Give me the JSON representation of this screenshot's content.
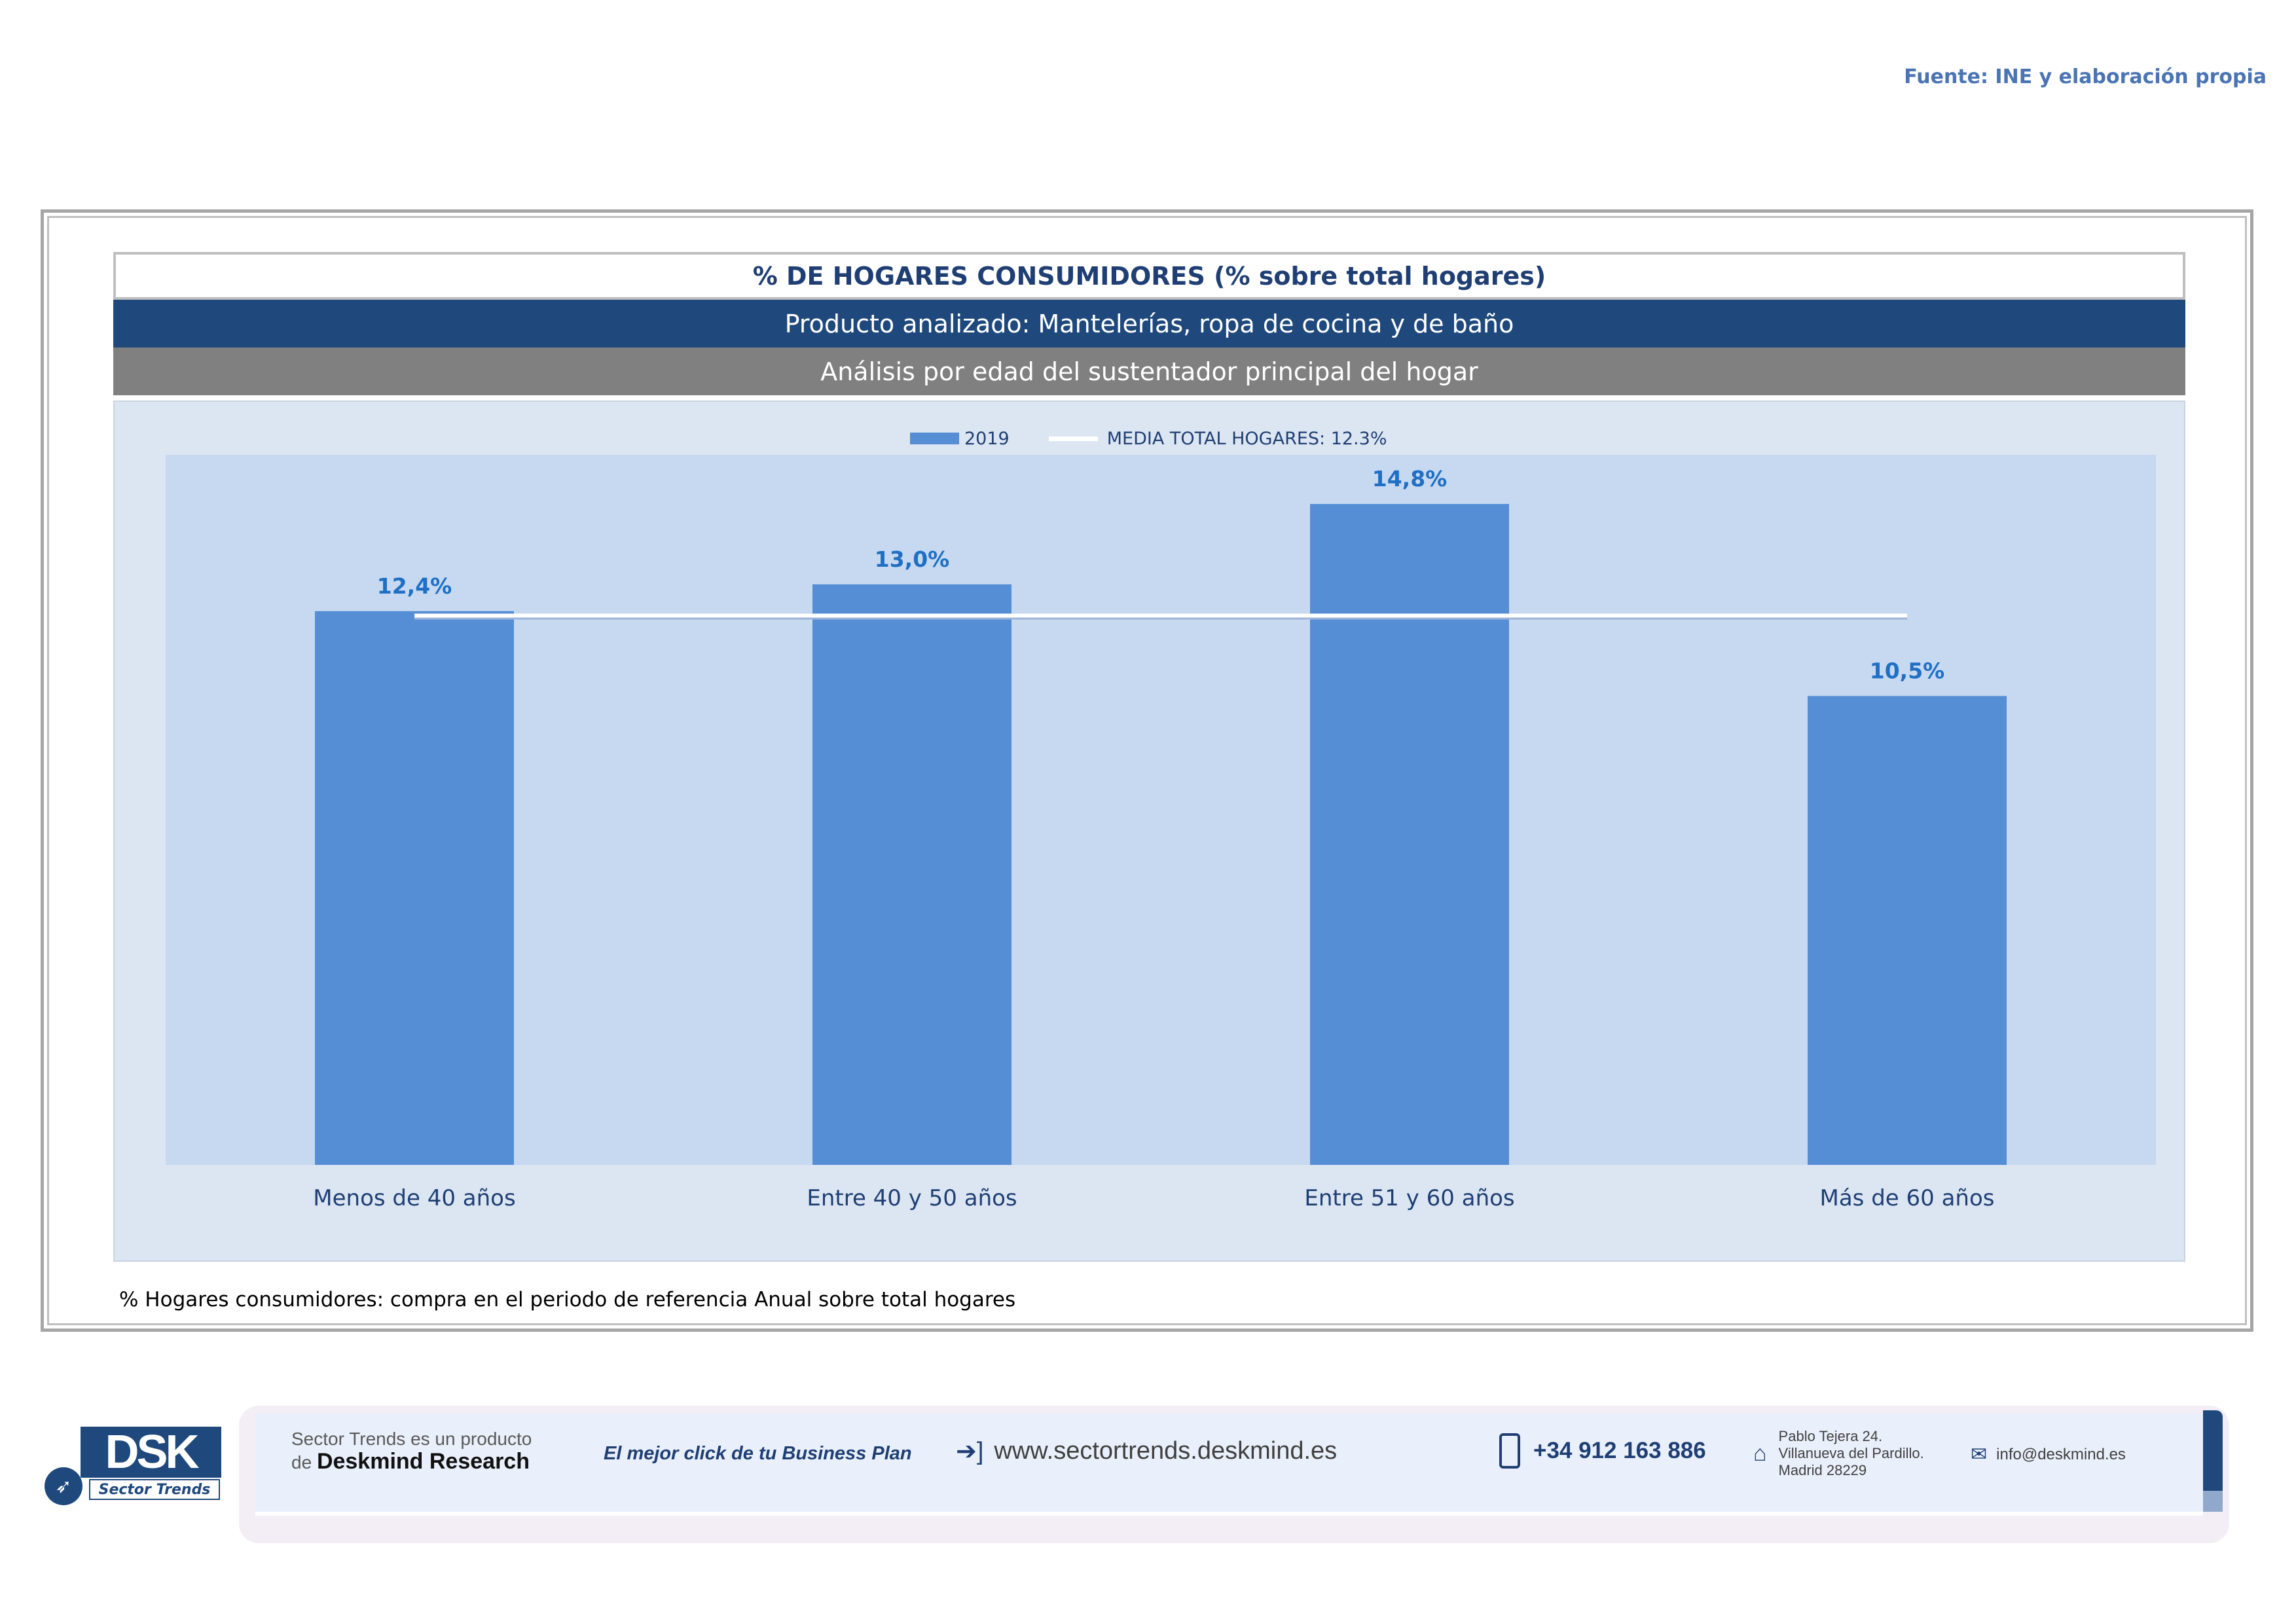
{
  "source": "Fuente: INE y elaboración propia",
  "header": {
    "title": "% DE HOGARES CONSUMIDORES (% sobre total hogares)",
    "product": "Producto analizado: Mantelerías, ropa de cocina y de baño",
    "analysis": "Análisis por edad del sustentador principal del hogar"
  },
  "chart_data": {
    "type": "bar",
    "categories": [
      "Menos de 40 años",
      "Entre 40 y 50 años",
      "Entre 51  y 60 años",
      "Más de 60 años"
    ],
    "series": [
      {
        "name": "2019",
        "values": [
          12.4,
          13.0,
          14.8,
          10.5
        ]
      }
    ],
    "value_labels": [
      "12,4%",
      "13,0%",
      "14,8%",
      "10,5%"
    ],
    "reference_line": {
      "name": "MEDIA TOTAL  HOGARES:  12.3%",
      "value": 12.3
    },
    "ylim": [
      0,
      15.9
    ],
    "colors": {
      "bar": "#558ed5",
      "line": "#ffffff",
      "plot_bg": "#c6d9f1",
      "label": "#1f6fc5"
    },
    "legend_position": "top-center",
    "grid": false
  },
  "footnote": "% Hogares consumidores: compra en el periodo de referencia Anual sobre total hogares",
  "footer": {
    "logo_text": "DSK",
    "logo_sub": "Sector Trends",
    "tagline_1": "Sector Trends es un producto",
    "tagline_2_prefix": "de",
    "tagline_2_brand": "Deskmind Research",
    "slogan": "El mejor click de tu Business Plan",
    "website": "www.sectortrends.deskmind.es",
    "phone": "+34 912 163 886",
    "address_1": "Pablo Tejera 24.",
    "address_2": "Villanueva del Pardillo.",
    "address_3": "Madrid 28229",
    "email": "info@deskmind.es"
  }
}
